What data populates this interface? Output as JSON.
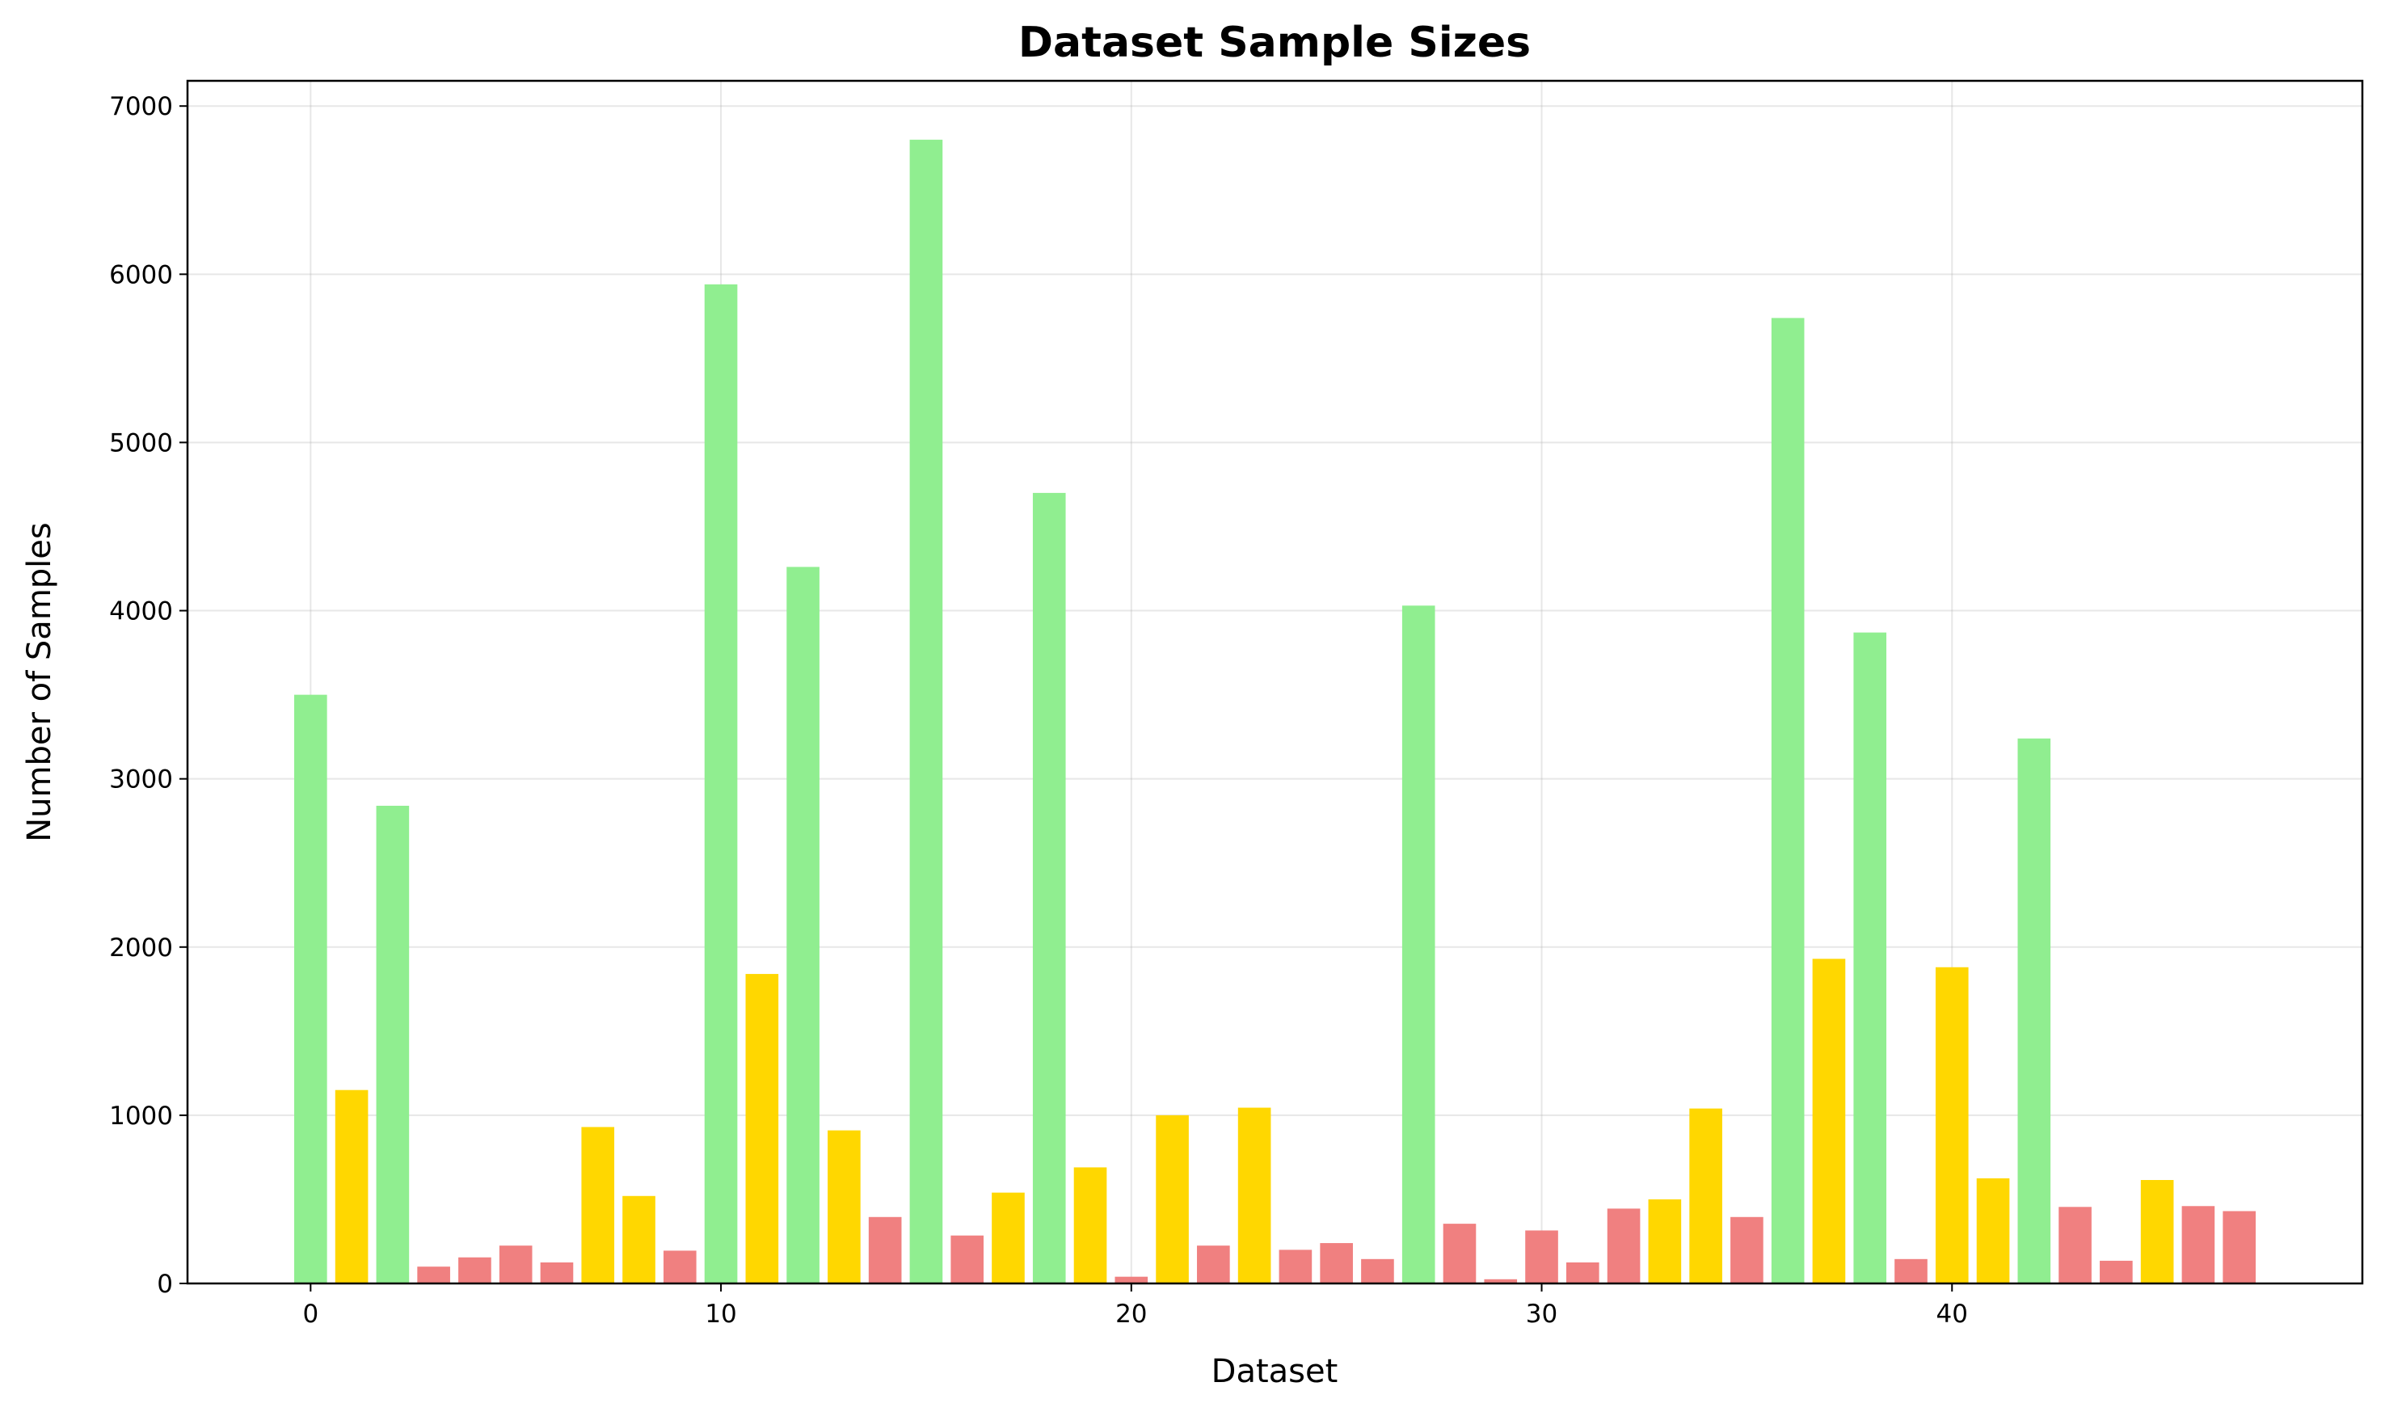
{
  "chart_data": {
    "type": "bar",
    "title": "Dataset Sample Sizes",
    "xlabel": "Dataset",
    "ylabel": "Number of Samples",
    "xlim": [
      -3,
      50
    ],
    "ylim": [
      0,
      7150
    ],
    "xticks": [
      0,
      10,
      20,
      30,
      40
    ],
    "yticks": [
      0,
      1000,
      2000,
      3000,
      4000,
      5000,
      6000,
      7000
    ],
    "grid": true,
    "colors": {
      "large": "#90ee90",
      "medium": "#ffd700",
      "small": "#f08080"
    },
    "bars": [
      {
        "x": 0,
        "value": 3500,
        "group": "large"
      },
      {
        "x": 1,
        "value": 1150,
        "group": "medium"
      },
      {
        "x": 2,
        "value": 2840,
        "group": "large"
      },
      {
        "x": 3,
        "value": 100,
        "group": "small"
      },
      {
        "x": 4,
        "value": 155,
        "group": "small"
      },
      {
        "x": 5,
        "value": 225,
        "group": "small"
      },
      {
        "x": 6,
        "value": 125,
        "group": "small"
      },
      {
        "x": 7,
        "value": 930,
        "group": "medium"
      },
      {
        "x": 8,
        "value": 520,
        "group": "medium"
      },
      {
        "x": 9,
        "value": 195,
        "group": "small"
      },
      {
        "x": 10,
        "value": 5940,
        "group": "large"
      },
      {
        "x": 11,
        "value": 1840,
        "group": "medium"
      },
      {
        "x": 12,
        "value": 4260,
        "group": "large"
      },
      {
        "x": 13,
        "value": 910,
        "group": "medium"
      },
      {
        "x": 14,
        "value": 395,
        "group": "small"
      },
      {
        "x": 15,
        "value": 6800,
        "group": "large"
      },
      {
        "x": 16,
        "value": 285,
        "group": "small"
      },
      {
        "x": 17,
        "value": 540,
        "group": "medium"
      },
      {
        "x": 18,
        "value": 4700,
        "group": "large"
      },
      {
        "x": 19,
        "value": 690,
        "group": "medium"
      },
      {
        "x": 20,
        "value": 40,
        "group": "small"
      },
      {
        "x": 21,
        "value": 1000,
        "group": "medium"
      },
      {
        "x": 22,
        "value": 225,
        "group": "small"
      },
      {
        "x": 23,
        "value": 1045,
        "group": "medium"
      },
      {
        "x": 24,
        "value": 200,
        "group": "small"
      },
      {
        "x": 25,
        "value": 240,
        "group": "small"
      },
      {
        "x": 26,
        "value": 145,
        "group": "small"
      },
      {
        "x": 27,
        "value": 4030,
        "group": "large"
      },
      {
        "x": 28,
        "value": 355,
        "group": "small"
      },
      {
        "x": 29,
        "value": 25,
        "group": "small"
      },
      {
        "x": 30,
        "value": 315,
        "group": "small"
      },
      {
        "x": 31,
        "value": 125,
        "group": "small"
      },
      {
        "x": 32,
        "value": 445,
        "group": "small"
      },
      {
        "x": 33,
        "value": 500,
        "group": "medium"
      },
      {
        "x": 34,
        "value": 1040,
        "group": "medium"
      },
      {
        "x": 35,
        "value": 395,
        "group": "small"
      },
      {
        "x": 36,
        "value": 5740,
        "group": "large"
      },
      {
        "x": 37,
        "value": 1930,
        "group": "medium"
      },
      {
        "x": 38,
        "value": 3870,
        "group": "large"
      },
      {
        "x": 39,
        "value": 145,
        "group": "small"
      },
      {
        "x": 40,
        "value": 1880,
        "group": "medium"
      },
      {
        "x": 41,
        "value": 625,
        "group": "medium"
      },
      {
        "x": 42,
        "value": 3240,
        "group": "large"
      },
      {
        "x": 43,
        "value": 455,
        "group": "small"
      },
      {
        "x": 44,
        "value": 135,
        "group": "small"
      },
      {
        "x": 45,
        "value": 615,
        "group": "medium"
      },
      {
        "x": 46,
        "value": 460,
        "group": "small"
      },
      {
        "x": 47,
        "value": 430,
        "group": "small"
      }
    ]
  }
}
